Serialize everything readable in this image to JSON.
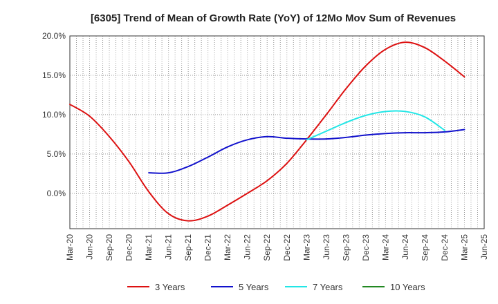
{
  "chart_data": {
    "type": "line",
    "title": "[6305]  Trend of Mean of Growth Rate (YoY) of 12Mo Mov Sum of Revenues",
    "xlabel": "",
    "ylabel": "",
    "ylim": [
      -4.5,
      20
    ],
    "yticks": [
      0,
      5,
      10,
      15,
      20
    ],
    "ytick_labels": [
      "0.0%",
      "5.0%",
      "10.0%",
      "15.0%",
      "20.0%"
    ],
    "x_tick_labels": [
      "Mar-20",
      "Jun-20",
      "Sep-20",
      "Dec-20",
      "Mar-21",
      "Jun-21",
      "Sep-21",
      "Dec-21",
      "Mar-22",
      "Jun-22",
      "Sep-22",
      "Dec-22",
      "Mar-23",
      "Jun-23",
      "Sep-23",
      "Dec-23",
      "Mar-24",
      "Jun-24",
      "Sep-24",
      "Dec-24",
      "Mar-25",
      "Jun-25"
    ],
    "grid": true,
    "legend_position": "bottom",
    "series": [
      {
        "name": "3 Years",
        "color": "#dd1111",
        "start_index": 0,
        "values": [
          11.3,
          9.8,
          7.2,
          4.0,
          0.2,
          -2.6,
          -3.5,
          -2.9,
          -1.5,
          0.0,
          1.6,
          3.8,
          6.8,
          10.0,
          13.3,
          16.2,
          18.3,
          19.2,
          18.5,
          16.8,
          14.8
        ]
      },
      {
        "name": "5 Years",
        "color": "#1111cc",
        "start_index": 4,
        "values": [
          2.6,
          2.6,
          3.4,
          4.6,
          5.9,
          6.8,
          7.2,
          7.0,
          6.9,
          6.9,
          7.1,
          7.4,
          7.6,
          7.7,
          7.7,
          7.8,
          8.1
        ]
      },
      {
        "name": "7 Years",
        "color": "#22e6e6",
        "start_index": 12,
        "values": [
          6.8,
          7.9,
          9.0,
          9.9,
          10.4,
          10.4,
          9.7,
          8.0
        ]
      },
      {
        "name": "10 Years",
        "color": "#228822",
        "start_index": 0,
        "values": []
      }
    ]
  }
}
